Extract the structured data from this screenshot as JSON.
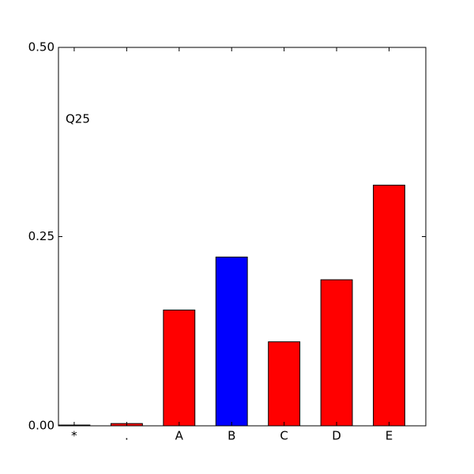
{
  "chart_data": {
    "type": "bar",
    "annotation": "Q25",
    "categories": [
      "*",
      ".",
      "A",
      "B",
      "C",
      "D",
      "E"
    ],
    "values": [
      0.001,
      0.003,
      0.153,
      0.223,
      0.111,
      0.193,
      0.318
    ],
    "colors": [
      "#ff0000",
      "#ff0000",
      "#ff0000",
      "#0000ff",
      "#ff0000",
      "#ff0000",
      "#ff0000"
    ],
    "ylim": [
      0,
      0.5
    ],
    "yticks": [
      {
        "value": 0,
        "label": "0.00"
      },
      {
        "value": 0.25,
        "label": "0.25"
      },
      {
        "value": 0.5,
        "label": "0.50"
      }
    ],
    "grid": false
  }
}
